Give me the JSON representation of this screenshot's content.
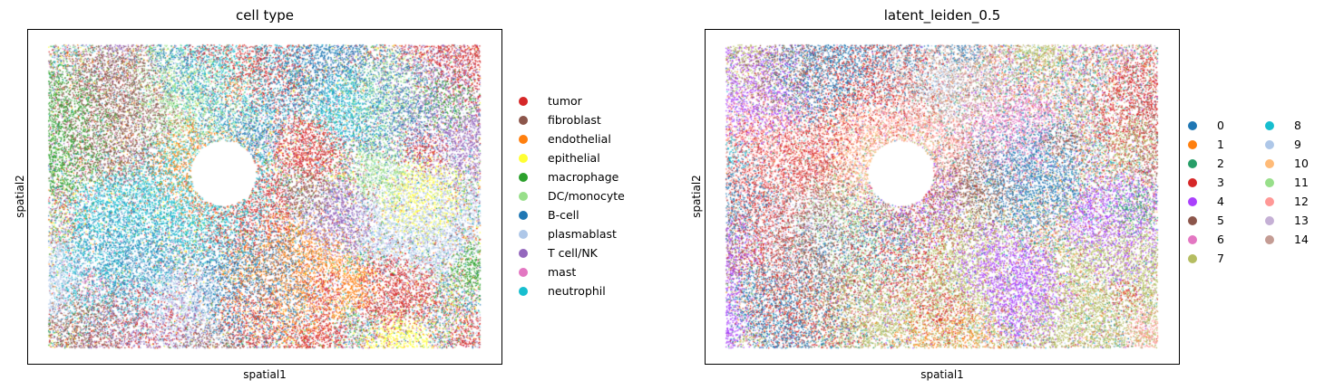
{
  "chart_data": [
    {
      "type": "scatter",
      "title": "cell type",
      "xlabel": "spatial1",
      "ylabel": "spatial2",
      "grid": false,
      "legend_placement": "right",
      "legend_columns": 1,
      "series": [
        {
          "name": "tumor",
          "color": "#d62728"
        },
        {
          "name": "fibroblast",
          "color": "#8c564b"
        },
        {
          "name": "endothelial",
          "color": "#ff7f0e"
        },
        {
          "name": "epithelial",
          "color": "#ffff33"
        },
        {
          "name": "macrophage",
          "color": "#2ca02c"
        },
        {
          "name": "DC/monocyte",
          "color": "#98df8a"
        },
        {
          "name": "B-cell",
          "color": "#1f77b4"
        },
        {
          "name": "plasmablast",
          "color": "#aec7e8"
        },
        {
          "name": "T cell/NK",
          "color": "#9467bd"
        },
        {
          "name": "mast",
          "color": "#e377c2"
        },
        {
          "name": "neutrophil",
          "color": "#17becf"
        }
      ]
    },
    {
      "type": "scatter",
      "title": "latent_leiden_0.5",
      "xlabel": "spatial1",
      "ylabel": "spatial2",
      "grid": false,
      "legend_placement": "right",
      "legend_columns": 2,
      "series": [
        {
          "name": "0",
          "color": "#1f77b4"
        },
        {
          "name": "1",
          "color": "#ff7f0e"
        },
        {
          "name": "2",
          "color": "#279e68"
        },
        {
          "name": "3",
          "color": "#d62728"
        },
        {
          "name": "4",
          "color": "#aa40fc"
        },
        {
          "name": "5",
          "color": "#8c564b"
        },
        {
          "name": "6",
          "color": "#e377c2"
        },
        {
          "name": "7",
          "color": "#b5bd61"
        },
        {
          "name": "8",
          "color": "#17becf"
        },
        {
          "name": "9",
          "color": "#aec7e8"
        },
        {
          "name": "10",
          "color": "#ffbb78"
        },
        {
          "name": "11",
          "color": "#98df8a"
        },
        {
          "name": "12",
          "color": "#ff9896"
        },
        {
          "name": "13",
          "color": "#c5b0d5"
        },
        {
          "name": "14",
          "color": "#c49c94"
        }
      ]
    }
  ]
}
